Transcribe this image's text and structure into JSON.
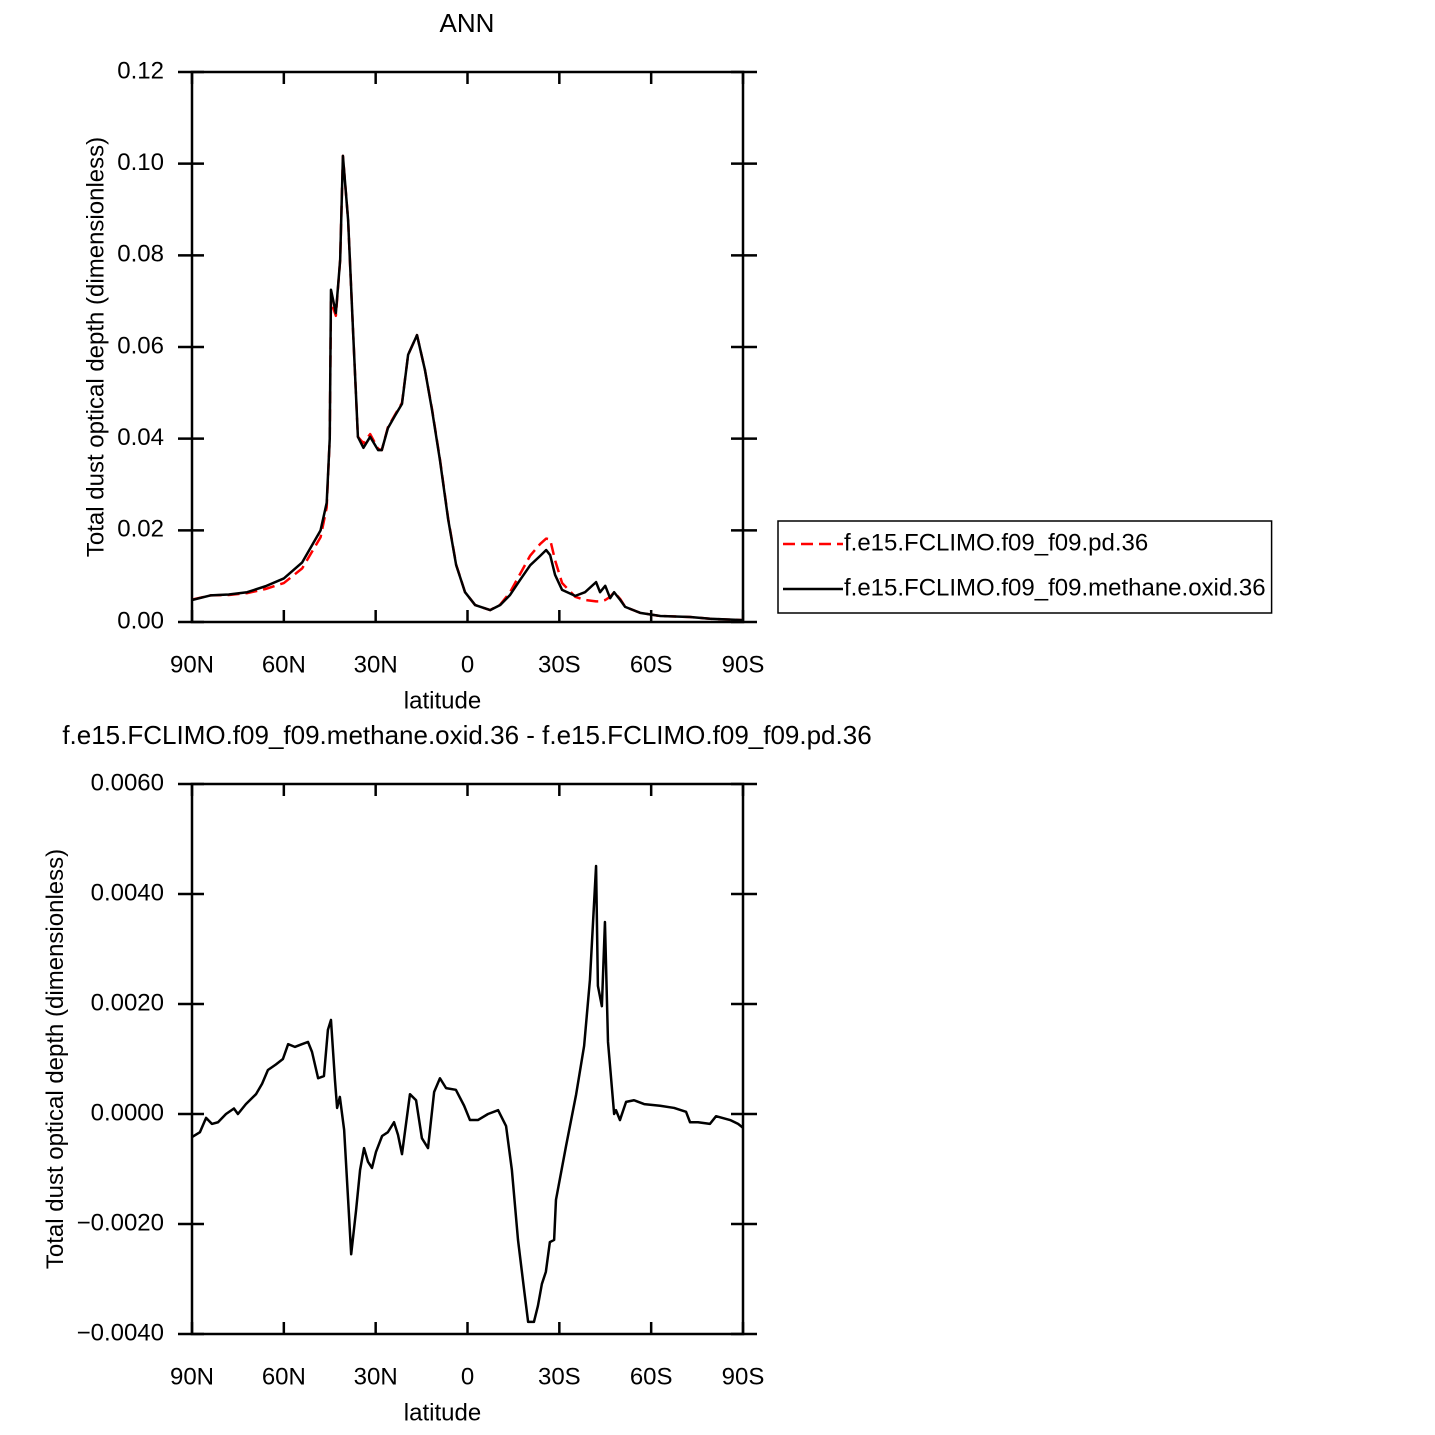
{
  "chart_data": [
    {
      "type": "line",
      "title": "ANN",
      "xlabel": "latitude",
      "ylabel": "Total dust optical depth (dimensionless)",
      "x": [
        90,
        84,
        78,
        72,
        66,
        60,
        54,
        48,
        46,
        45,
        44.6,
        43,
        41.6,
        40.7,
        39,
        37.4,
        35.8,
        34,
        31.8,
        29.2,
        28,
        26,
        23.7,
        21.4,
        19.4,
        16.5,
        13.9,
        11.6,
        9,
        6.3,
        3.7,
        0.8,
        -2.5,
        -7.4,
        -10.7,
        -13.9,
        -17.2,
        -20.5,
        -23.7,
        -25.7,
        -27,
        -28.6,
        -30.9,
        -35.2,
        -38.4,
        -42,
        -43.3,
        -45,
        -46.6,
        -47.9,
        -49.9,
        -51.5,
        -56.4,
        -63,
        -72.7,
        -79.3,
        -90
      ],
      "xlim": [
        90,
        -90
      ],
      "xticks": [
        {
          "value": 90,
          "label": "90N"
        },
        {
          "value": 60,
          "label": "60N"
        },
        {
          "value": 30,
          "label": "30N"
        },
        0,
        {
          "value": -30,
          "label": "30S"
        },
        {
          "value": -60,
          "label": "60S"
        },
        {
          "value": -90,
          "label": "90S"
        }
      ],
      "ylim": [
        0,
        0.12
      ],
      "yticks": [
        {
          "value": 0,
          "label": "0.00"
        },
        {
          "value": 0.02,
          "label": "0.02"
        },
        {
          "value": 0.04,
          "label": "0.04"
        },
        {
          "value": 0.06,
          "label": "0.06"
        },
        {
          "value": 0.08,
          "label": "0.08"
        },
        {
          "value": 0.1,
          "label": "0.10"
        },
        {
          "value": 0.12,
          "label": "0.12"
        }
      ],
      "legend": "outside right",
      "series": [
        {
          "name": "f.e15.FCLIMO.f09_f09.pd.36",
          "color": "#ff0000",
          "dash": "dashed",
          "values": [
            0.0049,
            0.0058,
            0.0059,
            0.0063,
            0.0072,
            0.0085,
            0.0117,
            0.0185,
            0.025,
            0.04,
            0.07,
            0.0668,
            0.079,
            0.1017,
            0.0877,
            0.0637,
            0.0404,
            0.039,
            0.041,
            0.0378,
            0.0375,
            0.0425,
            0.0452,
            0.0478,
            0.0583,
            0.0626,
            0.055,
            0.0465,
            0.0355,
            0.0225,
            0.0125,
            0.0065,
            0.0037,
            0.0026,
            0.0038,
            0.0065,
            0.0105,
            0.0145,
            0.017,
            0.0182,
            0.018,
            0.0135,
            0.0085,
            0.0055,
            0.0048,
            0.0045,
            0.0045,
            0.0048,
            0.0055,
            0.0065,
            0.005,
            0.0033,
            0.002,
            0.0013,
            0.0011,
            0.0007,
            0.0004
          ]
        },
        {
          "name": "f.e15.FCLIMO.f09_f09.methane.oxid.36",
          "color": "#000000",
          "dash": "solid",
          "values": [
            0.0048,
            0.0058,
            0.006,
            0.0065,
            0.0078,
            0.0095,
            0.013,
            0.02,
            0.026,
            0.04,
            0.0725,
            0.0674,
            0.079,
            0.1017,
            0.0877,
            0.0637,
            0.0404,
            0.038,
            0.0404,
            0.0375,
            0.0375,
            0.0423,
            0.045,
            0.0476,
            0.0583,
            0.0626,
            0.055,
            0.0463,
            0.0353,
            0.0223,
            0.0124,
            0.0065,
            0.0037,
            0.0026,
            0.0037,
            0.0059,
            0.0092,
            0.0124,
            0.0144,
            0.0157,
            0.0146,
            0.0103,
            0.007,
            0.0057,
            0.0065,
            0.0087,
            0.0065,
            0.0079,
            0.0052,
            0.0065,
            0.0048,
            0.0033,
            0.002,
            0.0013,
            0.0011,
            0.0007,
            0.0004
          ]
        }
      ]
    },
    {
      "type": "line",
      "title": "f.e15.FCLIMO.f09_f09.methane.oxid.36 - f.e15.FCLIMO.f09_f09.pd.36",
      "xlabel": "latitude",
      "ylabel": "Total dust optical depth (dimensionless)",
      "x": [
        90,
        87.4,
        85.4,
        83.5,
        81.5,
        78.9,
        76.3,
        75,
        72.4,
        69.1,
        67.1,
        65.2,
        62.6,
        60.3,
        58.6,
        56.4,
        54.1,
        52.1,
        50.8,
        48.8,
        46.9,
        45.6,
        44.6,
        43.3,
        42.6,
        41.7,
        40.3,
        39,
        38,
        36.4,
        35.1,
        33.8,
        32.5,
        31.2,
        29.9,
        27.9,
        26,
        24,
        22.7,
        21.4,
        18.8,
        16.8,
        14.9,
        12.9,
        10.9,
        9,
        7,
        3.8,
        1.1,
        -0.8,
        -3.4,
        -6.7,
        -10,
        -12.6,
        -14.5,
        -16.5,
        -18.5,
        -19.8,
        -21.7,
        -23,
        -24.3,
        -25.6,
        -26.9,
        -28.3,
        -28.9,
        -32.2,
        -35.5,
        -38.1,
        -40,
        -42,
        -42.6,
        -43.9,
        -44.9,
        -45.9,
        -47.9,
        -48.5,
        -49.8,
        -51.8,
        -54.4,
        -57.7,
        -62.9,
        -67.5,
        -71.4,
        -72.7,
        -75.3,
        -79.2,
        -81.2,
        -85.8,
        -88.4,
        -90
      ],
      "xlim": [
        90,
        -90
      ],
      "xticks": [
        {
          "value": 90,
          "label": "90N"
        },
        {
          "value": 60,
          "label": "60N"
        },
        {
          "value": 30,
          "label": "30N"
        },
        0,
        {
          "value": -30,
          "label": "30S"
        },
        {
          "value": -60,
          "label": "60S"
        },
        {
          "value": -90,
          "label": "90S"
        }
      ],
      "ylim": [
        -0.004,
        0.006
      ],
      "yticks": [
        {
          "value": -0.004,
          "label": "−0.0040"
        },
        {
          "value": -0.002,
          "label": "−0.0020"
        },
        {
          "value": 0,
          "label": "0.0000"
        },
        {
          "value": 0.002,
          "label": "0.0020"
        },
        {
          "value": 0.004,
          "label": "0.0040"
        },
        {
          "value": 0.006,
          "label": "0.0060"
        }
      ],
      "series": [
        {
          "color": "#000000",
          "dash": "solid",
          "values": [
            -0.00042,
            -0.00033,
            -7e-05,
            -0.00018,
            -0.00015,
            0,
            0.0001,
            0,
            0.00018,
            0.00036,
            0.00055,
            0.0008,
            0.0009,
            0.001,
            0.00127,
            0.00122,
            0.00127,
            0.00131,
            0.00113,
            0.00065,
            0.00069,
            0.00153,
            0.00171,
            0.00062,
            0.00011,
            0.00031,
            -0.00029,
            -0.00156,
            -0.00255,
            -0.00175,
            -0.00102,
            -0.00062,
            -0.00087,
            -0.00098,
            -0.00069,
            -0.0004,
            -0.00033,
            -0.00015,
            -0.00038,
            -0.00073,
            0.00036,
            0.00025,
            -0.00044,
            -0.00062,
            0.0004,
            0.00065,
            0.00047,
            0.00044,
            0.00015,
            -0.00011,
            -0.00011,
            0,
            7e-05,
            -0.00022,
            -0.00102,
            -0.00229,
            -0.0032,
            -0.00378,
            -0.00378,
            -0.00349,
            -0.00309,
            -0.00287,
            -0.00233,
            -0.00229,
            -0.00156,
            -0.00058,
            0.00036,
            0.00124,
            0.00244,
            0.00451,
            0.00233,
            0.00196,
            0.00349,
            0.00131,
            0,
            7e-05,
            -0.00011,
            0.00022,
            0.00025,
            0.00018,
            0.00015,
            0.00011,
            4e-05,
            -0.00015,
            -0.00015,
            -0.00018,
            -4e-05,
            -0.00011,
            -0.00018,
            -0.00025
          ]
        }
      ]
    }
  ]
}
